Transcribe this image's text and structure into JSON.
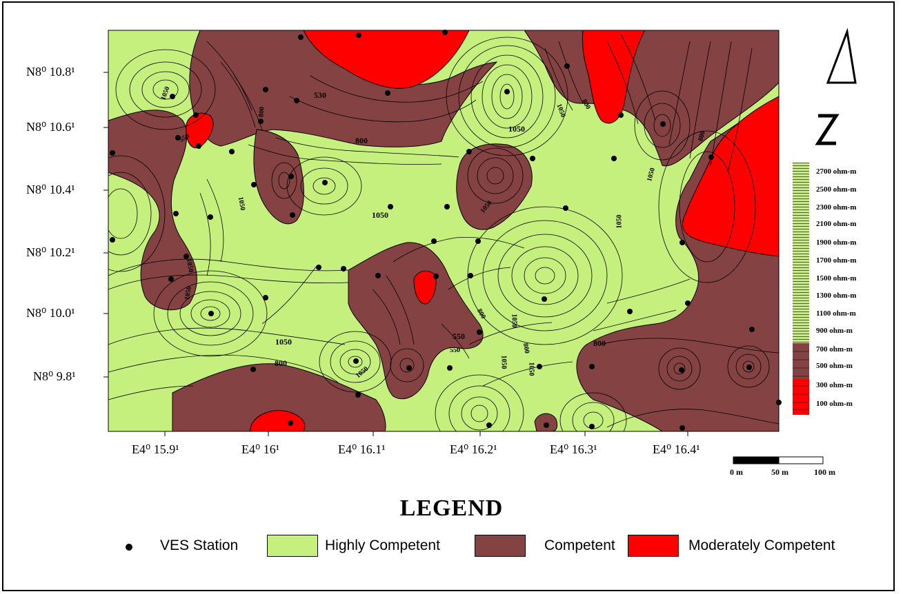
{
  "map": {
    "lat_labels": [
      "N8⁰ 10.8¹",
      "N8⁰ 10.6¹",
      "N8⁰ 10.4¹",
      "N8⁰ 10.2¹",
      "N8⁰ 10.0¹",
      "N8⁰ 9.8¹"
    ],
    "lon_labels": [
      "E4⁰ 15.9¹",
      "E4⁰ 16¹",
      "E4⁰ 16.1¹",
      "E4⁰ 16.2¹",
      "E4⁰ 16.3¹",
      "E4⁰ 16.4¹"
    ],
    "contour_labels": [
      "530",
      "800",
      "1050",
      "1050",
      "1050",
      "800",
      "550",
      "800",
      "1050",
      "800",
      "1050",
      "1050",
      "1050",
      "1050",
      "800",
      "1050",
      "800",
      "1050",
      "1050",
      "550",
      "550",
      "800",
      "800",
      "1050",
      "1050",
      "1050",
      "1050"
    ],
    "colors": {
      "highly_competent": "#c6f07e",
      "competent": "#844242",
      "moderately_competent": "#ff0000",
      "contour": "#000000",
      "station": "#000000"
    }
  },
  "color_ramp": {
    "labels": [
      "2700 ohm-m",
      "2500 ohm-m",
      "2300 ohm-m",
      "2100 ohm-m",
      "1900 ohm-m",
      "1700 ohm-m",
      "1500 ohm-m",
      "1300 ohm-m",
      "1100 ohm-m",
      "900 ohm-m",
      "700 ohm-m",
      "500 ohm-m",
      "300 ohm-m",
      "100 ohm-m"
    ]
  },
  "scale_bar": {
    "labels": [
      "0 m",
      "50 m",
      "100 m"
    ]
  },
  "north_arrow": {
    "icon": "north-arrow-icon"
  },
  "legend": {
    "title": "LEGEND",
    "items": [
      {
        "label": "VES Station",
        "icon": "dot-icon"
      },
      {
        "label": "Highly Competent",
        "color": "#c6f07e"
      },
      {
        "label": "Competent",
        "color": "#844242"
      },
      {
        "label": "Moderately Competent",
        "color": "#ff0000"
      }
    ]
  }
}
